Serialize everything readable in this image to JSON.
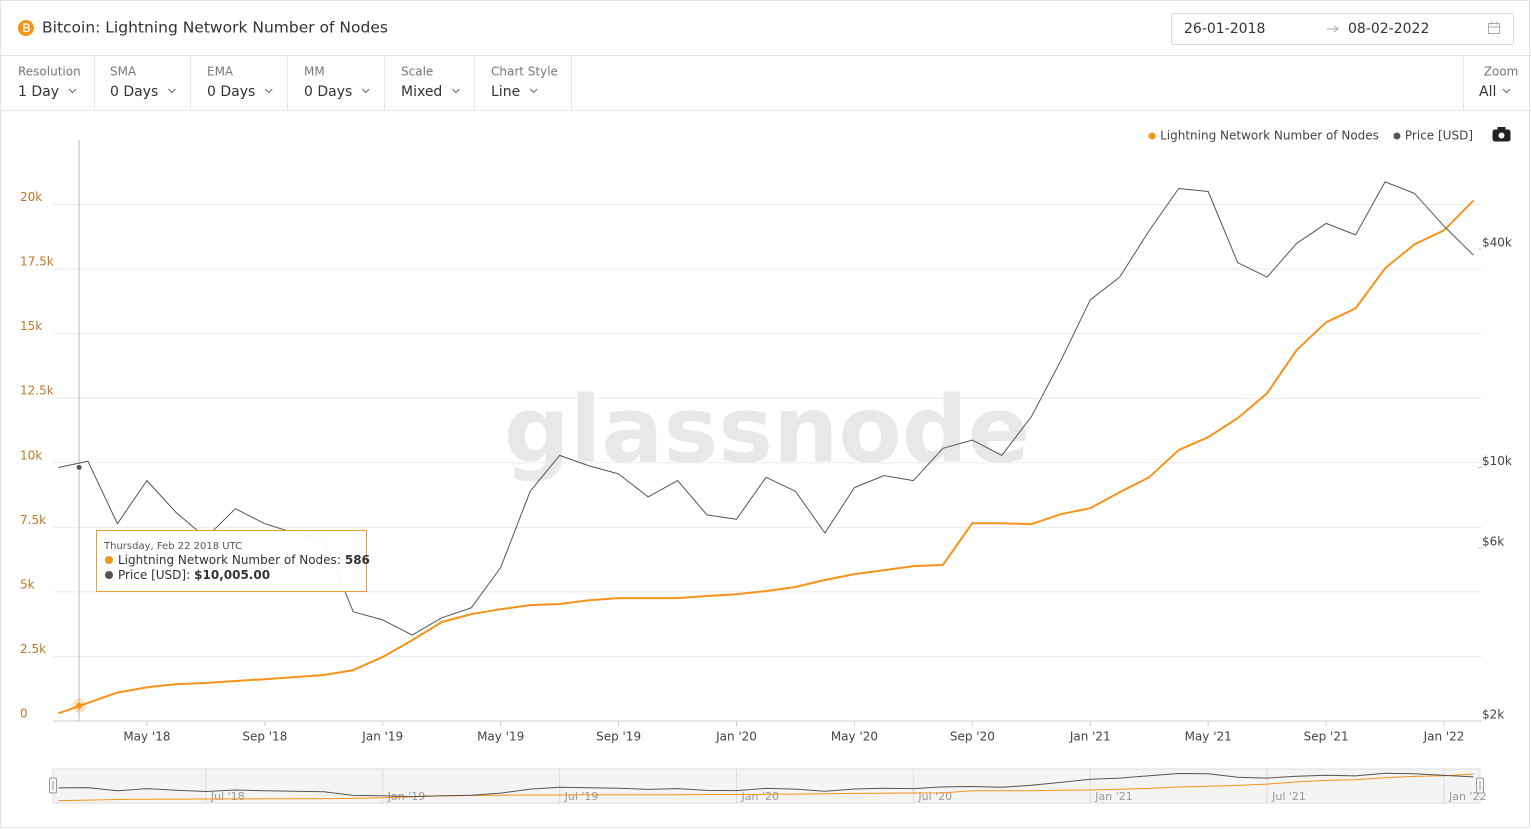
{
  "header": {
    "title": "Bitcoin: Lightning Network Number of Nodes",
    "date_from": "26-01-2018",
    "date_to": "08-02-2022"
  },
  "controls": [
    {
      "label": "Resolution",
      "value": "1 Day"
    },
    {
      "label": "SMA",
      "value": "0 Days"
    },
    {
      "label": "EMA",
      "value": "0 Days"
    },
    {
      "label": "MM",
      "value": "0 Days"
    },
    {
      "label": "Scale",
      "value": "Mixed"
    },
    {
      "label": "Chart Style",
      "value": "Line"
    }
  ],
  "zoom": {
    "label": "Zoom",
    "value": "All"
  },
  "chart_data": {
    "type": "line",
    "watermark": "glassnode",
    "x": [
      "2018-02",
      "2018-03",
      "2018-04",
      "2018-05",
      "2018-06",
      "2018-07",
      "2018-08",
      "2018-09",
      "2018-10",
      "2018-11",
      "2018-12",
      "2019-01",
      "2019-02",
      "2019-03",
      "2019-04",
      "2019-05",
      "2019-06",
      "2019-07",
      "2019-08",
      "2019-09",
      "2019-10",
      "2019-11",
      "2019-12",
      "2020-01",
      "2020-02",
      "2020-03",
      "2020-04",
      "2020-05",
      "2020-06",
      "2020-07",
      "2020-08",
      "2020-09",
      "2020-10",
      "2020-11",
      "2020-12",
      "2021-01",
      "2021-02",
      "2021-03",
      "2021-04",
      "2021-05",
      "2021-06",
      "2021-07",
      "2021-08",
      "2021-09",
      "2021-10",
      "2021-11",
      "2021-12",
      "2022-01",
      "2022-02"
    ],
    "series": [
      {
        "name": "Lightning Network Number of Nodes",
        "color": "#f7931a",
        "values": [
          300,
          700,
          1100,
          1300,
          1430,
          1470,
          1550,
          1620,
          1700,
          1780,
          1970,
          2480,
          3130,
          3830,
          4140,
          4330,
          4490,
          4530,
          4680,
          4760,
          4760,
          4760,
          4840,
          4910,
          5030,
          5190,
          5460,
          5690,
          5840,
          6000,
          6040,
          7660,
          7660,
          7620,
          8010,
          8240,
          8860,
          9440,
          10490,
          10990,
          11730,
          12690,
          14360,
          15440,
          15980,
          17530,
          18460,
          19000,
          20160
        ]
      },
      {
        "name": "Price [USD]",
        "color": "#555555",
        "axis": "y2",
        "values": [
          10000,
          10400,
          7000,
          9200,
          7500,
          6400,
          7700,
          7000,
          6600,
          6300,
          4000,
          3800,
          3450,
          3850,
          4100,
          5300,
          8600,
          10800,
          10100,
          9600,
          8300,
          9200,
          7400,
          7200,
          9400,
          8600,
          6600,
          8800,
          9500,
          9200,
          11300,
          11900,
          10800,
          13800,
          19700,
          29000,
          33500,
          45000,
          58800,
          57700,
          36700,
          33500,
          41500,
          47100,
          43800,
          61300,
          57000,
          46300,
          38500
        ]
      }
    ],
    "xlim": [
      "2018-01",
      "2022-02"
    ],
    "xticks": [
      {
        "value": "2018-05",
        "label": "May '18"
      },
      {
        "value": "2018-09",
        "label": "Sep '18"
      },
      {
        "value": "2019-01",
        "label": "Jan '19"
      },
      {
        "value": "2019-05",
        "label": "May '19"
      },
      {
        "value": "2019-09",
        "label": "Sep '19"
      },
      {
        "value": "2020-01",
        "label": "Jan '20"
      },
      {
        "value": "2020-05",
        "label": "May '20"
      },
      {
        "value": "2020-09",
        "label": "Sep '20"
      },
      {
        "value": "2021-01",
        "label": "Jan '21"
      },
      {
        "value": "2021-05",
        "label": "May '21"
      },
      {
        "value": "2021-09",
        "label": "Sep '21"
      },
      {
        "value": "2022-01",
        "label": "Jan '22"
      }
    ],
    "ylim": [
      0,
      22500
    ],
    "yticks": [
      0,
      {
        "value": 2500,
        "label": "2.5k"
      },
      {
        "value": 5000,
        "label": "5k"
      },
      {
        "value": 7500,
        "label": "7.5k"
      },
      {
        "value": 10000,
        "label": "10k"
      },
      {
        "value": 12500,
        "label": "12.5k"
      },
      {
        "value": 15000,
        "label": "15k"
      },
      {
        "value": 17500,
        "label": "17.5k"
      },
      {
        "value": 20000,
        "label": "20k"
      }
    ],
    "y2lim": [
      2000,
      80000
    ],
    "y2log": true,
    "y2ticks": [
      {
        "value": 2000,
        "label": "$2k"
      },
      {
        "value": 6000,
        "label": "$6k"
      },
      {
        "value": 10000,
        "label": "$10k"
      },
      {
        "value": 40000,
        "label": "$40k"
      }
    ],
    "grid": true,
    "legend": "top-right",
    "tooltip": {
      "title": "Thursday, Feb 22 2018 UTC",
      "labels": [
        "Lightning Network Number of Nodes:",
        "Price [USD]:"
      ],
      "values": [
        586,
        10005
      ],
      "value_labels": [
        "586",
        "$10,005.00"
      ]
    },
    "navigator_ticks": [
      {
        "value": "2018-07",
        "label": "Jul '18"
      },
      {
        "value": "2019-01",
        "label": "Jan '19"
      },
      {
        "value": "2019-07",
        "label": "Jul '19"
      },
      {
        "value": "2020-01",
        "label": "Jan '20"
      },
      {
        "value": "2020-07",
        "label": "Jul '20"
      },
      {
        "value": "2021-01",
        "label": "Jan '21"
      },
      {
        "value": "2021-07",
        "label": "Jul '21"
      },
      {
        "value": "2022-01",
        "label": "Jan '22"
      }
    ]
  }
}
